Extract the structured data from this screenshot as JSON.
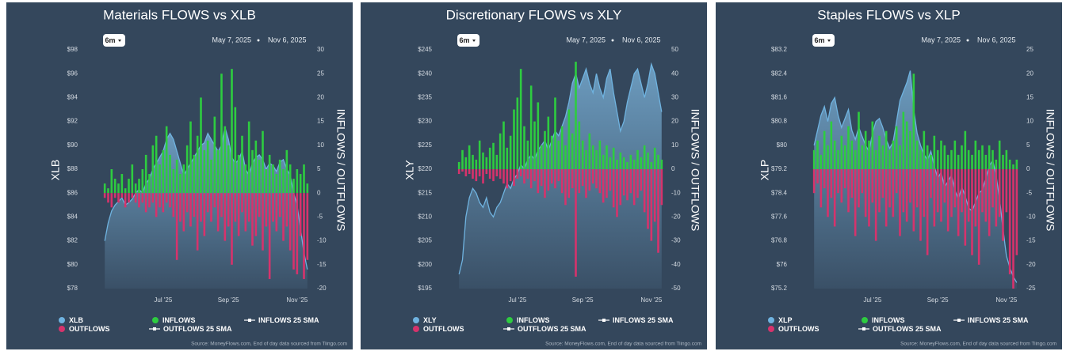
{
  "chart_data": [
    {
      "type": "flows",
      "title": "Materials FLOWS vs XLB",
      "range_button": "6m",
      "date_range": [
        "May 7, 2025",
        "Nov 6, 2025"
      ],
      "ylabel": "XLB",
      "y2label": "INFLOWS / OUTFLOWS",
      "categories": [
        null,
        null,
        null,
        null,
        null,
        null,
        null,
        null,
        null,
        null,
        null,
        null,
        null,
        null,
        null,
        null,
        null,
        "Jul '25",
        null,
        null,
        null,
        null,
        null,
        null,
        null,
        null,
        null,
        null,
        null,
        null,
        null,
        null,
        null,
        null,
        null,
        null,
        "Sep '25",
        null,
        null,
        null,
        null,
        null,
        null,
        null,
        null,
        null,
        null,
        null,
        null,
        null,
        null,
        null,
        null,
        null,
        null,
        null,
        "Nov '25",
        null,
        null,
        null
      ],
      "ylim": [
        78,
        98
      ],
      "yticks": [
        {
          "value": 78,
          "label": "$78"
        },
        {
          "value": 80,
          "label": "$80"
        },
        {
          "value": 82,
          "label": "$82"
        },
        {
          "value": 84,
          "label": "$84"
        },
        {
          "value": 86,
          "label": "$86"
        },
        {
          "value": 88,
          "label": "$88"
        },
        {
          "value": 90,
          "label": "$90"
        },
        {
          "value": 92,
          "label": "$92"
        },
        {
          "value": 94,
          "label": "$94"
        },
        {
          "value": 96,
          "label": "$96"
        },
        {
          "value": 98,
          "label": "$98"
        }
      ],
      "y2lim": [
        -20,
        30
      ],
      "y2ticks": [
        -20,
        -15,
        -10,
        -5,
        0,
        5,
        10,
        15,
        20,
        25,
        30
      ],
      "series": [
        {
          "name": "XLB",
          "color": "#6fb3e0",
          "kind": "area",
          "values": [
            82,
            83.5,
            84.5,
            85,
            85.3,
            85.6,
            85,
            85.2,
            85.5,
            86,
            86.3,
            86,
            86.8,
            87.2,
            88,
            88.5,
            89,
            89.5,
            90.5,
            91,
            90.5,
            89.5,
            88.5,
            87.5,
            88,
            88.5,
            89,
            89.5,
            90,
            90.2,
            91,
            90.5,
            90,
            89.5,
            90,
            91.5,
            90.5,
            89,
            88.5,
            88.8,
            89.5,
            88,
            87.5,
            88.5,
            89,
            89.2,
            88.8,
            88,
            88.5,
            88.3,
            87.8,
            88.6,
            88.8,
            88,
            87.5,
            86,
            85,
            83,
            81,
            79.6
          ]
        },
        {
          "name": "INFLOWS",
          "color": "#2ecc40",
          "kind": "bar",
          "axis": "y2",
          "values": [
            2,
            1,
            5,
            3,
            2,
            4,
            1,
            3,
            6,
            2,
            3,
            5,
            8,
            4,
            10,
            12,
            6,
            9,
            14,
            8,
            5,
            7,
            4,
            6,
            10,
            15,
            8,
            12,
            20,
            9,
            11,
            7,
            16,
            9,
            25,
            14,
            10,
            26,
            18,
            8,
            12,
            6,
            15,
            9,
            11,
            7,
            13,
            5,
            8,
            6,
            4,
            7,
            5,
            9,
            6,
            3,
            5,
            4,
            6,
            2
          ]
        },
        {
          "name": "OUTFLOWS",
          "color": "#d6336c",
          "kind": "bar",
          "axis": "y2",
          "values": [
            -1,
            -2,
            -3,
            -1,
            -2,
            -1,
            -3,
            -2,
            -1,
            -2,
            -3,
            -2,
            -4,
            -3,
            -2,
            -5,
            -3,
            -4,
            -2,
            -3,
            -5,
            -14,
            -6,
            -8,
            -4,
            -7,
            -5,
            -12,
            -6,
            -9,
            -4,
            -6,
            -3,
            -8,
            -5,
            -10,
            -7,
            -15,
            -6,
            -9,
            -4,
            -8,
            -6,
            -11,
            -9,
            -5,
            -12,
            -7,
            -18,
            -6,
            -8,
            -5,
            -10,
            -7,
            -12,
            -16,
            -17,
            -9,
            -18,
            -14
          ]
        }
      ],
      "legend_lines": [
        "INFLOWS 25 SMA",
        "OUTFLOWS 25 SMA"
      ],
      "source": "Source: MoneyFlows.com, End of day data sourced from Tiingo.com"
    },
    {
      "type": "flows",
      "title": "Discretionary FLOWS vs XLY",
      "range_button": "6m",
      "date_range": [
        "May 7, 2025",
        "Nov 6, 2025"
      ],
      "ylabel": "XLY",
      "y2label": "INFLOWS / OUTFLOWS",
      "categories": [
        null,
        null,
        null,
        null,
        null,
        null,
        null,
        null,
        null,
        null,
        null,
        null,
        null,
        null,
        null,
        null,
        null,
        "Jul '25",
        null,
        null,
        null,
        null,
        null,
        null,
        null,
        null,
        null,
        null,
        null,
        null,
        null,
        null,
        null,
        null,
        null,
        null,
        "Sep '25",
        null,
        null,
        null,
        null,
        null,
        null,
        null,
        null,
        null,
        null,
        null,
        null,
        null,
        null,
        null,
        null,
        null,
        null,
        null,
        "Nov '25",
        null,
        null,
        null
      ],
      "ylim": [
        195,
        245
      ],
      "yticks": [
        {
          "value": 195,
          "label": "$195"
        },
        {
          "value": 200,
          "label": "$200"
        },
        {
          "value": 205,
          "label": "$205"
        },
        {
          "value": 210,
          "label": "$210"
        },
        {
          "value": 215,
          "label": "$215"
        },
        {
          "value": 220,
          "label": "$220"
        },
        {
          "value": 225,
          "label": "$225"
        },
        {
          "value": 230,
          "label": "$230"
        },
        {
          "value": 235,
          "label": "$235"
        },
        {
          "value": 240,
          "label": "$240"
        },
        {
          "value": 245,
          "label": "$245"
        }
      ],
      "y2lim": [
        -50,
        50
      ],
      "y2ticks": [
        -50,
        -40,
        -30,
        -20,
        -10,
        0,
        10,
        20,
        30,
        40,
        50
      ],
      "series": [
        {
          "name": "XLY",
          "color": "#6fb3e0",
          "kind": "area",
          "values": [
            198,
            201,
            210,
            214,
            216,
            215,
            213,
            212,
            214,
            211,
            210,
            212,
            213,
            215,
            217,
            216,
            218,
            219,
            221,
            220,
            222,
            223,
            222,
            224,
            225,
            226,
            224,
            226,
            228,
            227,
            229,
            231,
            234,
            238,
            240,
            237,
            239,
            241,
            238,
            236,
            240,
            237,
            235,
            239,
            241,
            236,
            232,
            228,
            230,
            234,
            237,
            240,
            241,
            238,
            235,
            238,
            242,
            240,
            236,
            232
          ]
        },
        {
          "name": "INFLOWS",
          "color": "#2ecc40",
          "kind": "bar",
          "axis": "y2",
          "values": [
            3,
            8,
            5,
            10,
            6,
            4,
            12,
            7,
            5,
            9,
            11,
            6,
            15,
            20,
            9,
            14,
            25,
            30,
            42,
            18,
            12,
            35,
            20,
            28,
            10,
            16,
            22,
            14,
            30,
            12,
            18,
            10,
            25,
            15,
            45,
            20,
            12,
            8,
            15,
            10,
            8,
            12,
            6,
            10,
            5,
            9,
            4,
            7,
            5,
            3,
            6,
            4,
            8,
            5,
            10,
            7,
            3,
            9,
            6,
            4
          ]
        },
        {
          "name": "OUTFLOWS",
          "color": "#d6336c",
          "kind": "bar",
          "axis": "y2",
          "values": [
            -2,
            -1,
            -3,
            -2,
            -4,
            -5,
            -3,
            -6,
            -2,
            -4,
            -5,
            -3,
            -4,
            -6,
            -8,
            -5,
            -7,
            -4,
            -3,
            -6,
            -4,
            -8,
            -5,
            -10,
            -7,
            -12,
            -9,
            -6,
            -8,
            -5,
            -10,
            -15,
            -12,
            -8,
            -45,
            -10,
            -7,
            -12,
            -9,
            -6,
            -8,
            -10,
            -14,
            -12,
            -9,
            -16,
            -20,
            -15,
            -11,
            -13,
            -10,
            -15,
            -12,
            -9,
            -18,
            -25,
            -30,
            -22,
            -35,
            -15
          ]
        }
      ],
      "legend_lines": [
        "INFLOWS 25 SMA",
        "OUTFLOWS 25 SMA"
      ],
      "source": "Source: MoneyFlows.com, End of day data sourced from Tiingo.com"
    },
    {
      "type": "flows",
      "title": "Staples FLOWS vs XLP",
      "range_button": "6m",
      "date_range": [
        "May 7, 2025",
        "Nov 6, 2025"
      ],
      "ylabel": "XLP",
      "y2label": "INFLOWS / OUTFLOWS",
      "categories": [
        null,
        null,
        null,
        null,
        null,
        null,
        null,
        null,
        null,
        null,
        null,
        null,
        null,
        null,
        null,
        null,
        null,
        "Jul '25",
        null,
        null,
        null,
        null,
        null,
        null,
        null,
        null,
        null,
        null,
        null,
        null,
        null,
        null,
        null,
        null,
        null,
        null,
        "Sep '25",
        null,
        null,
        null,
        null,
        null,
        null,
        null,
        null,
        null,
        null,
        null,
        null,
        null,
        null,
        null,
        null,
        null,
        null,
        null,
        "Nov '25",
        null,
        null,
        null
      ],
      "ylim": [
        75.2,
        83.2
      ],
      "yticks": [
        {
          "value": 75.2,
          "label": "$75.2"
        },
        {
          "value": 76,
          "label": "$76"
        },
        {
          "value": 76.8,
          "label": "$76.8"
        },
        {
          "value": 77.6,
          "label": "$77.6"
        },
        {
          "value": 78.4,
          "label": "$78.4"
        },
        {
          "value": 79.2,
          "label": "$79.2"
        },
        {
          "value": 80,
          "label": "$80"
        },
        {
          "value": 80.8,
          "label": "$80.8"
        },
        {
          "value": 81.6,
          "label": "$81.6"
        },
        {
          "value": 82.4,
          "label": "$82.4"
        },
        {
          "value": 83.2,
          "label": "$83.2"
        }
      ],
      "y2lim": [
        -25,
        25
      ],
      "y2ticks": [
        -25,
        -20,
        -15,
        -10,
        -5,
        0,
        5,
        10,
        15,
        20,
        25
      ],
      "series": [
        {
          "name": "XLP",
          "color": "#6fb3e0",
          "kind": "area",
          "values": [
            80,
            80.5,
            81,
            81.3,
            80.8,
            81.4,
            81.6,
            81,
            80.6,
            80.9,
            81.2,
            80.5,
            80.2,
            80.6,
            80.3,
            80,
            79.8,
            80.4,
            80.8,
            80.9,
            80.6,
            80.2,
            79.9,
            80.1,
            80.8,
            81.5,
            81.8,
            82.1,
            82.5,
            81.2,
            80.4,
            80,
            79.7,
            79.5,
            79.8,
            79.3,
            78.9,
            79.1,
            78.6,
            78.8,
            79,
            78.5,
            78.2,
            78.6,
            78.3,
            77.9,
            77.8,
            78.1,
            78.4,
            78.5,
            78.9,
            79.3,
            79.5,
            79,
            78.2,
            77.2,
            76.3,
            75.9,
            75.6,
            75.4
          ]
        },
        {
          "name": "INFLOWS",
          "color": "#2ecc40",
          "kind": "bar",
          "axis": "y2",
          "values": [
            4,
            6,
            3,
            8,
            5,
            10,
            6,
            4,
            7,
            5,
            9,
            6,
            4,
            12,
            5,
            8,
            6,
            10,
            4,
            7,
            5,
            8,
            4,
            6,
            9,
            5,
            12,
            10,
            8,
            20,
            6,
            4,
            8,
            5,
            3,
            7,
            4,
            6,
            5,
            3,
            4,
            6,
            3,
            5,
            8,
            4,
            3,
            6,
            4,
            5,
            3,
            5,
            4,
            2,
            6,
            3,
            4,
            2,
            1,
            2
          ]
        },
        {
          "name": "OUTFLOWS",
          "color": "#d6336c",
          "kind": "bar",
          "axis": "y2",
          "values": [
            -5,
            -3,
            -8,
            -4,
            -10,
            -6,
            -12,
            -5,
            -7,
            -4,
            -9,
            -6,
            -14,
            -8,
            -5,
            -10,
            -12,
            -7,
            -15,
            -9,
            -6,
            -12,
            -8,
            -10,
            -5,
            -14,
            -9,
            -11,
            -7,
            -13,
            -8,
            -15,
            -10,
            -18,
            -6,
            -12,
            -9,
            -11,
            -7,
            -13,
            -10,
            -8,
            -14,
            -9,
            -16,
            -11,
            -18,
            -12,
            -20,
            -9,
            -11,
            -14,
            -8,
            -12,
            -10,
            -15,
            -9,
            -22,
            -25,
            -18
          ]
        }
      ],
      "legend_lines": [
        "INFLOWS 25 SMA",
        "OUTFLOWS 25 SMA"
      ],
      "source": "Source: MoneyFlows.com, End of day data sourced from Tiingo.com"
    }
  ]
}
